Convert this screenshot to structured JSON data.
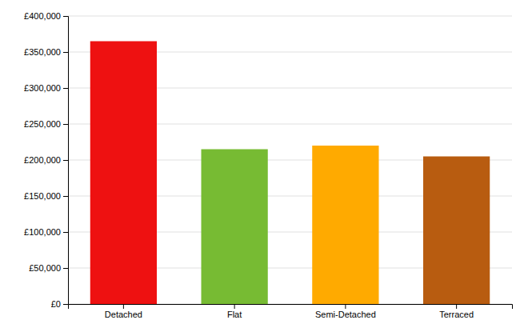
{
  "chart_data": {
    "type": "bar",
    "categories": [
      "Detached",
      "Flat",
      "Semi-Detached",
      "Terraced"
    ],
    "values": [
      365000,
      215000,
      220000,
      205000
    ],
    "colors": [
      "#ee1111",
      "#77bb33",
      "#ffaa00",
      "#b85c10"
    ],
    "ylim": [
      0,
      400000
    ],
    "yticks": [
      {
        "value": 0,
        "label": "£0"
      },
      {
        "value": 50000,
        "label": "£50,000"
      },
      {
        "value": 100000,
        "label": "£100,000"
      },
      {
        "value": 150000,
        "label": "£150,000"
      },
      {
        "value": 200000,
        "label": "£200,000"
      },
      {
        "value": 250000,
        "label": "£250,000"
      },
      {
        "value": 300000,
        "label": "£300,000"
      },
      {
        "value": 350000,
        "label": "£350,000"
      },
      {
        "value": 400000,
        "label": "£400,000"
      }
    ],
    "grid": true
  }
}
